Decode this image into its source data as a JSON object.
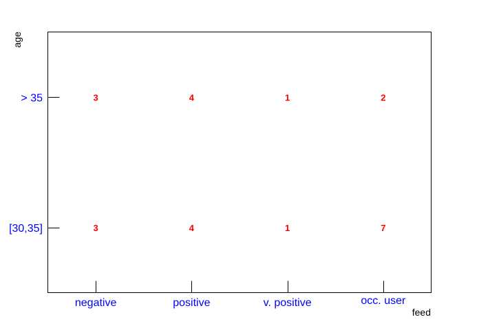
{
  "chart_data": {
    "type": "table",
    "xlabel": "feed",
    "ylabel": "age",
    "x_categories": [
      "negative",
      "positive",
      "v. positive",
      "occ. user"
    ],
    "y_categories": [
      "[30,35]",
      "> 35"
    ],
    "cells": [
      {
        "x": "negative",
        "y": "> 35",
        "value": 3
      },
      {
        "x": "positive",
        "y": "> 35",
        "value": 4
      },
      {
        "x": "v. positive",
        "y": "> 35",
        "value": 1
      },
      {
        "x": "occ. user",
        "y": "> 35",
        "value": 2
      },
      {
        "x": "negative",
        "y": "[30,35]",
        "value": 3
      },
      {
        "x": "positive",
        "y": "[30,35]",
        "value": 4
      },
      {
        "x": "v. positive",
        "y": "[30,35]",
        "value": 1
      },
      {
        "x": "occ. user",
        "y": "[30,35]",
        "value": 7
      }
    ],
    "colors": {
      "category_labels": "#0000ff",
      "cell_values": "#ff0000",
      "axis": "#000000"
    }
  }
}
